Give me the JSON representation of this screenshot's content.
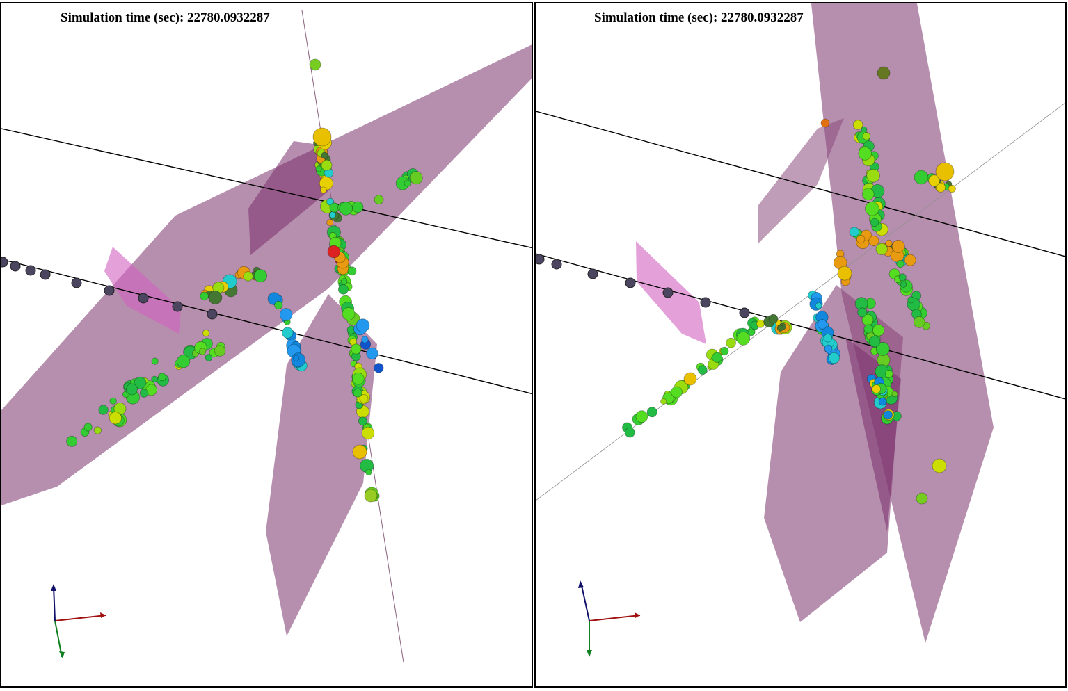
{
  "viewports": [
    {
      "id": "left",
      "sim_label": "Simulation time (sec): 22780.0932287"
    },
    {
      "id": "right",
      "sim_label": "Simulation time (sec): 22780.0932287"
    }
  ],
  "colors": {
    "fracture_plane": "#9b5e8e",
    "fracture_plane_light": "#d77bcc",
    "well_line": "#000000",
    "well_marker": "#4b4560",
    "axis_x": "#a01010",
    "axis_y": "#10106a",
    "axis_z": "#108020"
  },
  "icons": [
    "axis-triad-icon"
  ]
}
